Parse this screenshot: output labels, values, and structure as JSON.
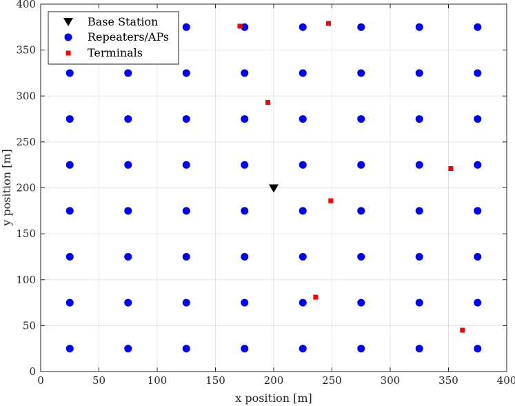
{
  "chart_data": {
    "type": "scatter",
    "xlabel": "x position [m]",
    "ylabel": "y position [m]",
    "xlim": [
      0,
      400
    ],
    "ylim": [
      0,
      400
    ],
    "xticks": [
      0,
      50,
      100,
      150,
      200,
      250,
      300,
      350,
      400
    ],
    "yticks": [
      0,
      50,
      100,
      150,
      200,
      250,
      300,
      350,
      400
    ],
    "grid": true,
    "legend_position": "top-left",
    "series": [
      {
        "name": "Base Station",
        "marker": "triangle-down",
        "color": "#000000",
        "points": [
          [
            200,
            200
          ]
        ]
      },
      {
        "name": "Repeaters/APs",
        "marker": "circle",
        "color": "#0000ff",
        "points": [
          [
            25,
            25
          ],
          [
            75,
            25
          ],
          [
            125,
            25
          ],
          [
            175,
            25
          ],
          [
            225,
            25
          ],
          [
            275,
            25
          ],
          [
            325,
            25
          ],
          [
            375,
            25
          ],
          [
            25,
            75
          ],
          [
            75,
            75
          ],
          [
            125,
            75
          ],
          [
            175,
            75
          ],
          [
            225,
            75
          ],
          [
            275,
            75
          ],
          [
            325,
            75
          ],
          [
            375,
            75
          ],
          [
            25,
            125
          ],
          [
            75,
            125
          ],
          [
            125,
            125
          ],
          [
            175,
            125
          ],
          [
            225,
            125
          ],
          [
            275,
            125
          ],
          [
            325,
            125
          ],
          [
            375,
            125
          ],
          [
            25,
            175
          ],
          [
            75,
            175
          ],
          [
            125,
            175
          ],
          [
            175,
            175
          ],
          [
            225,
            175
          ],
          [
            275,
            175
          ],
          [
            325,
            175
          ],
          [
            375,
            175
          ],
          [
            25,
            225
          ],
          [
            75,
            225
          ],
          [
            125,
            225
          ],
          [
            175,
            225
          ],
          [
            225,
            225
          ],
          [
            275,
            225
          ],
          [
            325,
            225
          ],
          [
            375,
            225
          ],
          [
            25,
            275
          ],
          [
            75,
            275
          ],
          [
            125,
            275
          ],
          [
            175,
            275
          ],
          [
            225,
            275
          ],
          [
            275,
            275
          ],
          [
            325,
            275
          ],
          [
            375,
            275
          ],
          [
            25,
            325
          ],
          [
            75,
            325
          ],
          [
            125,
            325
          ],
          [
            175,
            325
          ],
          [
            225,
            325
          ],
          [
            275,
            325
          ],
          [
            325,
            325
          ],
          [
            375,
            325
          ],
          [
            25,
            375
          ],
          [
            75,
            375
          ],
          [
            125,
            375
          ],
          [
            175,
            375
          ],
          [
            225,
            375
          ],
          [
            275,
            375
          ],
          [
            325,
            375
          ],
          [
            375,
            375
          ]
        ]
      },
      {
        "name": "Terminals",
        "marker": "square",
        "color": "#ff0000",
        "points": [
          [
            171,
            376
          ],
          [
            247,
            379
          ],
          [
            195,
            293
          ],
          [
            352,
            221
          ],
          [
            249,
            186
          ],
          [
            236,
            81
          ],
          [
            362,
            45
          ]
        ]
      }
    ]
  }
}
